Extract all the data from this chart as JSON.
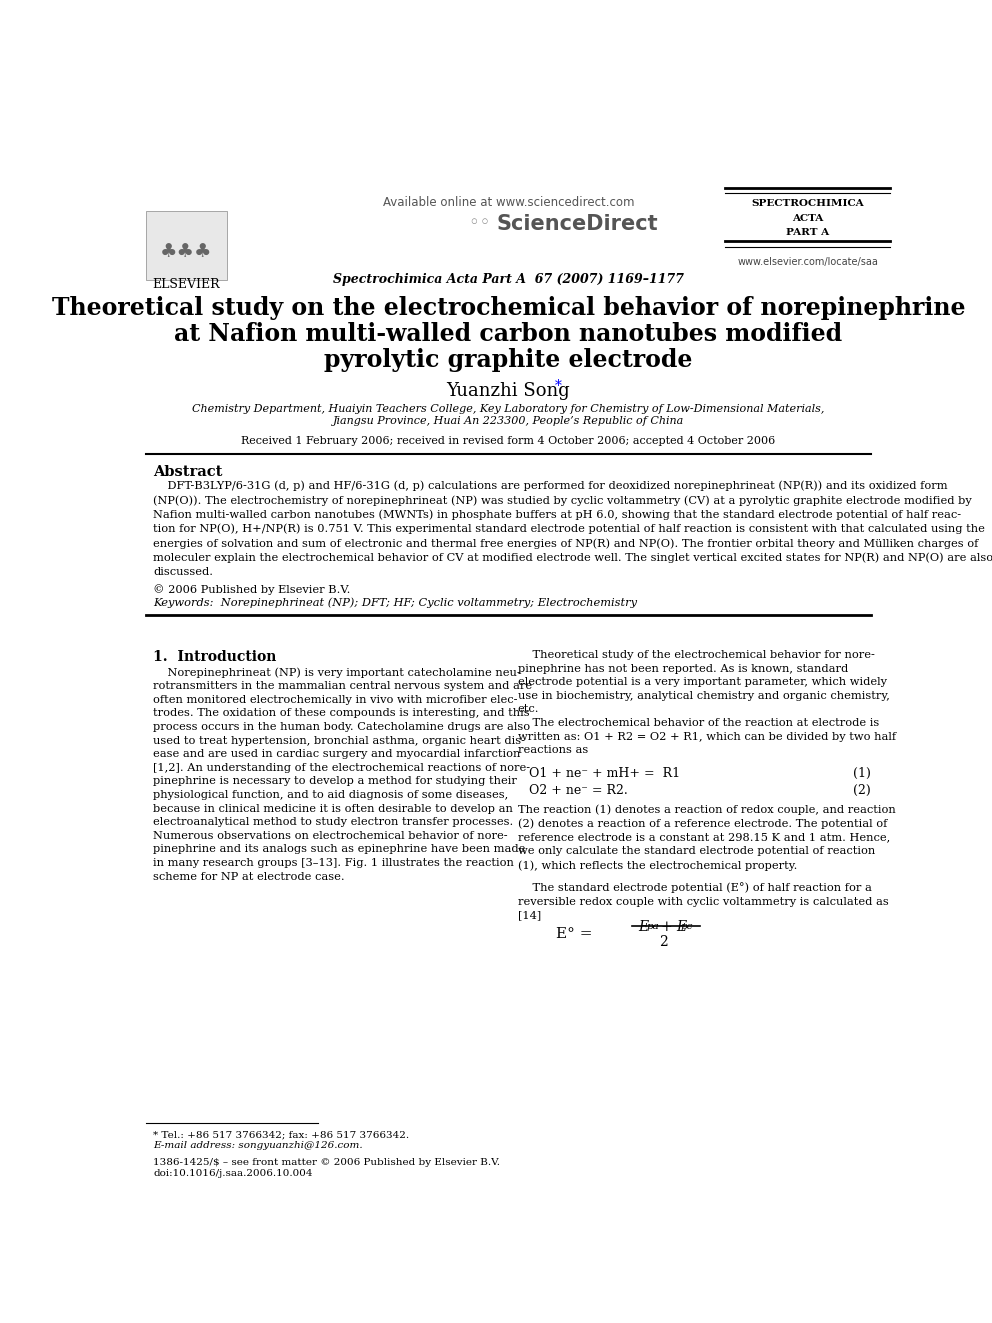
{
  "bg_color": "#ffffff",
  "title_line1": "Theoretical study on the electrochemical behavior of norepinephrine",
  "title_line2": "at Nafion multi-walled carbon nanotubes modified",
  "title_line3": "pyrolytic graphite electrode",
  "author": "Yuanzhi Song",
  "affiliation_line1": "Chemistry Department, Huaiyin Teachers College, Key Laboratory for Chemistry of Low-Dimensional Materials,",
  "affiliation_line2": "Jiangsu Province, Huai An 223300, People’s Republic of China",
  "received": "Received 1 February 2006; received in revised form 4 October 2006; accepted 4 October 2006",
  "header_available": "Available online at www.sciencedirect.com",
  "header_journal": "Spectrochimica Acta Part A  67 (2007) 1169–1177",
  "journal_name_line1": "SPECTROCHIMICA",
  "journal_name_line2": "ACTA",
  "journal_name_line3": "PART A",
  "website": "www.elsevier.com/locate/saa",
  "elsevier_text": "ELSEVIER",
  "abstract_title": "Abstract",
  "abstract_body": "    DFT-B3LYP/6-31G (d, p) and HF/6-31G (d, p) calculations are performed for deoxidized norepinephrineat (NP(R)) and its oxidized form\n(NP(O)). The electrochemistry of norepinephrineat (NP) was studied by cyclic voltammetry (CV) at a pyrolytic graphite electrode modified by\nNafion multi-walled carbon nanotubes (MWNTs) in phosphate buffers at pH 6.0, showing that the standard electrode potential of half reac-\ntion for NP(O), H+/NP(R) is 0.751 V. This experimental standard electrode potential of half reaction is consistent with that calculated using the\nenergies of solvation and sum of electronic and thermal free energies of NP(R) and NP(O). The frontier orbital theory and Mülliken charges of\nmoleculer explain the electrochemical behavior of CV at modified electrode well. The singlet vertical excited states for NP(R) and NP(O) are also\ndiscussed.",
  "copyright": "© 2006 Published by Elsevier B.V.",
  "keywords": "Keywords:  Norepinephrineat (NP); DFT; HF; Cyclic voltammetry; Electrochemistry",
  "section1_title": "1.  Introduction",
  "section1_col1": "    Norepinephrineat (NP) is very important catecholamine neu-\nrotransmitters in the mammalian central nervous system and are\noften monitored electrochemically in vivo with microfiber elec-\ntrodes. The oxidation of these compounds is interesting, and this\nprocess occurs in the human body. Catecholamine drugs are also\nused to treat hypertension, bronchial asthma, organic heart dis-\nease and are used in cardiac surgery and myocardial infarction\n[1,2]. An understanding of the electrochemical reactions of nore-\npinephrine is necessary to develop a method for studying their\nphysiological function, and to aid diagnosis of some diseases,\nbecause in clinical medicine it is often desirable to develop an\nelectroanalytical method to study electron transfer processes.\nNumerous observations on electrochemical behavior of nore-\npinephrine and its analogs such as epinephrine have been made\nin many research groups [3–13]. Fig. 1 illustrates the reaction\nscheme for NP at electrode case.",
  "section1_col2": "    Theoretical study of the electrochemical behavior for nore-\npinephrine has not been reported. As is known, standard\nelectrode potential is a very important parameter, which widely\nuse in biochemistry, analytical chemistry and organic chemistry,\netc.\n    The electrochemical behavior of the reaction at electrode is\nwritten as: O1 + R2 = O2 + R1, which can be divided by two half\nreactions as",
  "eq1_left": "O1 + ne⁻ + mH+ =  R1",
  "eq1_right": "(1)",
  "eq2_left": "O2 + ne⁻ = R2.",
  "eq2_right": "(2)",
  "eq_text1": "The reaction (1) denotes a reaction of redox couple, and reaction\n(2) denotes a reaction of a reference electrode. The potential of\nreference electrode is a constant at 298.15 K and 1 atm. Hence,\nwe only calculate the standard electrode potential of reaction\n(1), which reflects the electrochemical property.",
  "eq_text2": "    The standard electrode potential (E°) of half reaction for a\nreversible redox couple with cyclic voltammetry is calculated as\n[14]",
  "footnote_tel": "* Tel.: +86 517 3766342; fax: +86 517 3766342.",
  "footnote_email": "E-mail address: songyuanzhi@126.com.",
  "footnote_issn": "1386-1425/$ – see front matter © 2006 Published by Elsevier B.V.",
  "footnote_doi": "doi:10.1016/j.saa.2006.10.004"
}
